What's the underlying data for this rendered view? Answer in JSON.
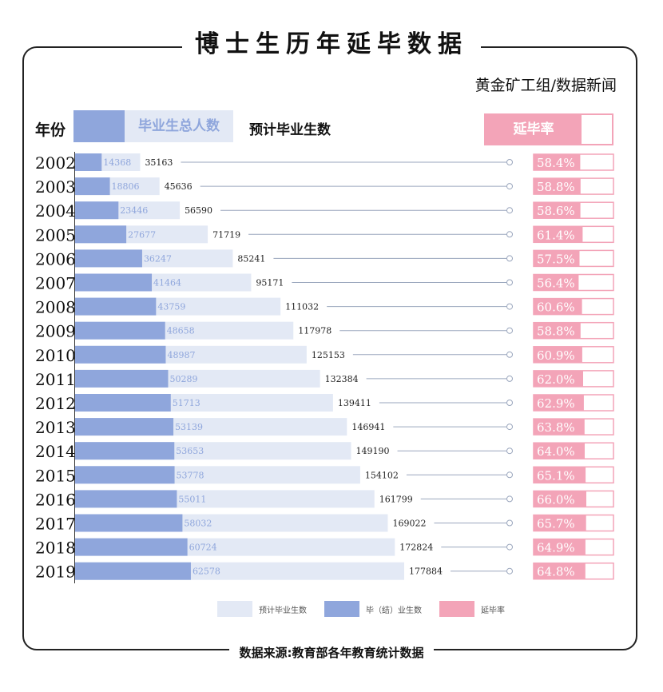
{
  "title": "博士生历年延毕数据",
  "subtitle": "黄金矿工组/数据新闻",
  "headers": {
    "year": "年份",
    "graduates": "毕业生总人数",
    "expected": "预计毕业生数",
    "rate": "延毕率"
  },
  "legend": {
    "expected": "预计毕业生数",
    "graduates": "毕（结）业生数",
    "rate": "延毕率"
  },
  "source": "数据来源:教育部各年教育统计数据",
  "colors": {
    "graduates": "#8fa6dc",
    "expected": "#e3e9f5",
    "rate": "#f3a4b8",
    "leader": "#9aa6bd"
  },
  "chart_data": {
    "type": "bar",
    "categories": [
      "2002",
      "2003",
      "2004",
      "2005",
      "2006",
      "2007",
      "2008",
      "2009",
      "2010",
      "2011",
      "2012",
      "2013",
      "2014",
      "2015",
      "2016",
      "2017",
      "2018",
      "2019"
    ],
    "series": [
      {
        "name": "毕（结）业生数",
        "values": [
          14368,
          18806,
          23446,
          27677,
          36247,
          41464,
          43759,
          48658,
          48987,
          50289,
          51713,
          53139,
          53653,
          53778,
          55011,
          58032,
          60724,
          62578
        ]
      },
      {
        "name": "预计毕业生数",
        "values": [
          35163,
          45636,
          56590,
          71719,
          85241,
          95171,
          111032,
          117978,
          125153,
          132384,
          139411,
          146941,
          149190,
          154102,
          161799,
          169022,
          172824,
          177884
        ]
      }
    ],
    "rates": [
      "58.4%",
      "58.8%",
      "58.6%",
      "61.4%",
      "57.5%",
      "56.4%",
      "60.6%",
      "58.8%",
      "60.9%",
      "62.0%",
      "62.9%",
      "63.8%",
      "64.0%",
      "65.1%",
      "66.0%",
      "65.7%",
      "64.9%",
      "64.8%"
    ]
  }
}
